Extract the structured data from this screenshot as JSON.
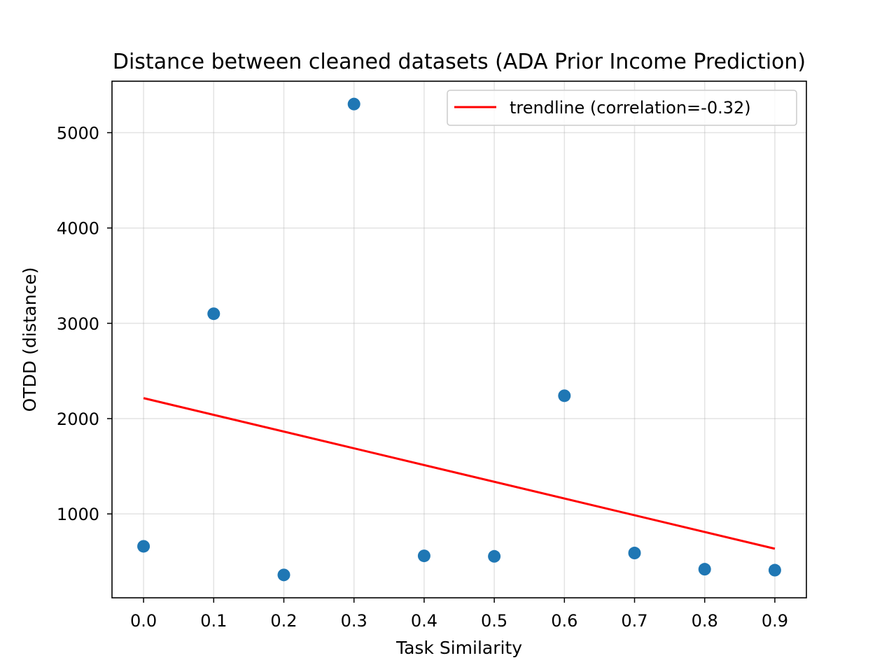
{
  "chart_data": {
    "type": "scatter",
    "title": "Distance between cleaned datasets (ADA Prior Income Prediction)",
    "xlabel": "Task Similarity",
    "ylabel": "OTDD (distance)",
    "xlim": [
      -0.045,
      0.945
    ],
    "ylim": [
      120,
      5540
    ],
    "xticks": [
      0.0,
      0.1,
      0.2,
      0.3,
      0.4,
      0.5,
      0.6,
      0.7,
      0.8,
      0.9
    ],
    "xtick_labels": [
      "0.0",
      "0.1",
      "0.2",
      "0.3",
      "0.4",
      "0.5",
      "0.6",
      "0.7",
      "0.8",
      "0.9"
    ],
    "yticks": [
      1000,
      2000,
      3000,
      4000,
      5000
    ],
    "ytick_labels": [
      "1000",
      "2000",
      "3000",
      "4000",
      "5000"
    ],
    "grid": true,
    "legend_position": "top-right",
    "series": [
      {
        "kind": "scatter",
        "color": "#1f77b4",
        "x": [
          0.0,
          0.1,
          0.2,
          0.3,
          0.4,
          0.5,
          0.6,
          0.7,
          0.8,
          0.9
        ],
        "y": [
          660,
          3100,
          360,
          5300,
          560,
          555,
          2240,
          590,
          420,
          410
        ]
      },
      {
        "kind": "line",
        "name": "trendline (correlation=-0.32)",
        "color": "#ff0000",
        "x": [
          0.0,
          0.9
        ],
        "y": [
          2215,
          635
        ]
      }
    ]
  }
}
